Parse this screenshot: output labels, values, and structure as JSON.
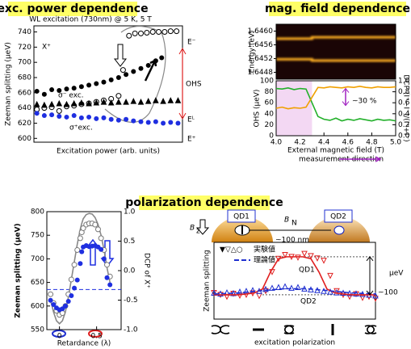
{
  "chart_data": [
    {
      "type": "scatter",
      "title": "exc. power dependence",
      "subtitle": "WL excitation (730nm) @ 5 K, 5 T",
      "y_label": "Zeeman splitting (μeV)",
      "x_label": "Excitation power (arb. units)",
      "xlim": [
        0,
        1
      ],
      "ylim": [
        595,
        748
      ],
      "yticks": [
        600,
        620,
        640,
        660,
        680,
        700,
        720,
        740
      ],
      "annotations": [
        "X⁺",
        "σ⁻ exc.",
        "σ⁺exc.",
        "E⁻",
        "OHS",
        "Eᴸ",
        "E⁺"
      ],
      "series": [
        {
          "marker": "open-circle",
          "color": "#000000",
          "x": [
            0.02,
            0.07,
            0.12,
            0.17,
            0.22,
            0.27,
            0.32,
            0.37,
            0.42,
            0.47,
            0.52,
            0.57,
            0.6,
            0.64,
            0.68,
            0.72,
            0.76,
            0.8,
            0.84,
            0.88,
            0.92,
            0.96
          ],
          "values": [
            638,
            640,
            641,
            636,
            642,
            643,
            645,
            646,
            648,
            650,
            652,
            656,
            690,
            735,
            738,
            738,
            739,
            740,
            740,
            740,
            741,
            741
          ]
        },
        {
          "marker": "circle",
          "color": "#000000",
          "x": [
            0.02,
            0.07,
            0.12,
            0.17,
            0.22,
            0.27,
            0.32,
            0.37,
            0.42,
            0.47,
            0.52,
            0.57,
            0.62,
            0.67,
            0.72,
            0.77,
            0.82,
            0.86
          ],
          "values": [
            662,
            658,
            664,
            663,
            665,
            666,
            668,
            670,
            672,
            674,
            677,
            680,
            684,
            688,
            692,
            696,
            702,
            706
          ]
        },
        {
          "marker": "circle",
          "color": "#1f2fe0",
          "x": [
            0.02,
            0.07,
            0.12,
            0.17,
            0.22,
            0.27,
            0.32,
            0.37,
            0.42,
            0.47,
            0.52,
            0.57,
            0.62,
            0.67,
            0.72,
            0.77,
            0.82,
            0.87,
            0.92,
            0.97
          ],
          "values": [
            633,
            630,
            631,
            629,
            628,
            630,
            627,
            628,
            626,
            627,
            625,
            624,
            625,
            623,
            622,
            621,
            622,
            620,
            621,
            620
          ]
        },
        {
          "marker": "triangle",
          "color": "#000000",
          "x": [
            0.02,
            0.07,
            0.12,
            0.17,
            0.22,
            0.27,
            0.32,
            0.37,
            0.42,
            0.47,
            0.52,
            0.57,
            0.62,
            0.67,
            0.72,
            0.77,
            0.82,
            0.87,
            0.92,
            0.97
          ],
          "values": [
            645,
            644,
            645,
            646,
            645,
            646,
            647,
            646,
            647,
            648,
            647,
            648,
            648,
            649,
            648,
            649,
            650,
            649,
            650,
            650
          ]
        }
      ]
    },
    {
      "type": "line",
      "title": "mag. field dependence",
      "image": {
        "y_label": "Energy (eV)",
        "ylim": [
          1.6446,
          1.6462
        ],
        "yticks": [
          1.6448,
          1.6452,
          1.6456,
          {
            "value": 1.646,
            "label": "1.6460"
          }
        ],
        "x": [
          4.0,
          4.3,
          4.3,
          5.0
        ],
        "color": "#ffb020",
        "lines": [
          {
            "values": [
              1.64578,
              1.64578,
              1.64582,
              1.64582
            ]
          },
          {
            "values": [
              1.64518,
              1.64518,
              1.64514,
              1.64514
            ]
          }
        ]
      },
      "x_label": "External magnetic field (T)",
      "xlim": [
        4.0,
        5.0
      ],
      "xticks": [
        {
          "value": 4.0,
          "label": "4.0"
        },
        4.2,
        4.4,
        4.6,
        4.8,
        {
          "value": 5.0,
          "label": "5.0"
        }
      ],
      "y_label": "OHS (μeV)",
      "ylim": [
        0,
        100
      ],
      "yticks": [
        0,
        20,
        40,
        60,
        80,
        100
      ],
      "y2_label": "DCP (I⁺−I⁻)/(I⁺+I⁻)",
      "y2lim": [
        0,
        1
      ],
      "y2ticks": [
        {
          "value": 0,
          "label": "0.0"
        },
        0.2,
        0.4,
        0.6,
        0.8,
        {
          "value": 1,
          "label": "1.0"
        }
      ],
      "annotations": [
        "~30 %",
        "measurement direction"
      ],
      "series": [
        {
          "marker": "line",
          "color": "#22b02a",
          "x": [
            4.0,
            4.05,
            4.1,
            4.15,
            4.2,
            4.25,
            4.3,
            4.35,
            4.4,
            4.45,
            4.5,
            4.55,
            4.6,
            4.65,
            4.7,
            4.75,
            4.8,
            4.85,
            4.9,
            4.95,
            5.0
          ],
          "values": [
            86,
            85,
            87,
            84,
            86,
            85,
            60,
            35,
            30,
            28,
            32,
            27,
            30,
            28,
            31,
            29,
            27,
            30,
            28,
            29,
            27
          ]
        },
        {
          "marker": "line",
          "color": "#f0a000",
          "axis": "y2",
          "x": [
            4.0,
            4.05,
            4.1,
            4.15,
            4.2,
            4.25,
            4.3,
            4.35,
            4.4,
            4.45,
            4.5,
            4.55,
            4.6,
            4.65,
            4.7,
            4.75,
            4.8,
            4.85,
            4.9,
            4.95,
            5.0
          ],
          "values": [
            0.5,
            0.52,
            0.49,
            0.51,
            0.5,
            0.52,
            0.7,
            0.88,
            0.87,
            0.89,
            0.88,
            0.87,
            0.89,
            0.88,
            0.9,
            0.88,
            0.87,
            0.89,
            0.88,
            0.88,
            0.89
          ]
        }
      ]
    },
    {
      "type": "scatter",
      "y_label": "Zeeman splitting (μeV)",
      "y2_label": "DCP of X⁺",
      "x_label": "Retardance (λ)",
      "xlim": [
        -0.17,
        0.83
      ],
      "xticks": [
        0,
        0.5
      ],
      "ylim": [
        550,
        800
      ],
      "yticks": [
        550,
        600,
        650,
        700,
        750,
        800
      ],
      "y2lim": [
        -1,
        1
      ],
      "y2ticks": [
        {
          "value": -1,
          "label": "-1.0"
        },
        -0.5,
        {
          "value": 0,
          "label": "0.0"
        },
        0.5,
        {
          "value": 1,
          "label": "1.0"
        }
      ],
      "hline": 635,
      "series": [
        {
          "marker": "line",
          "color": "#888888",
          "axis": "y2",
          "x": [
            -0.12,
            -0.08,
            -0.04,
            0,
            0.04,
            0.08,
            0.12,
            0.16,
            0.2,
            0.24,
            0.28,
            0.3,
            0.32,
            0.36,
            0.4,
            0.44,
            0.48,
            0.52,
            0.56,
            0.6,
            0.64,
            0.68
          ],
          "values": [
            -0.5,
            -0.7,
            -0.85,
            -0.9,
            -0.85,
            -0.7,
            -0.45,
            -0.15,
            0.15,
            0.45,
            0.7,
            0.8,
            0.88,
            0.95,
            0.97,
            0.96,
            0.9,
            0.78,
            0.6,
            0.35,
            0.05,
            -0.2
          ]
        },
        {
          "marker": "open-circle",
          "color": "#777777",
          "axis": "y2",
          "x": [
            -0.12,
            -0.08,
            -0.04,
            0,
            0.04,
            0.08,
            0.12,
            0.16,
            0.2,
            0.24,
            0.28,
            0.3,
            0.32,
            0.36,
            0.4,
            0.44,
            0.48,
            0.52,
            0.56,
            0.6,
            0.64,
            0.68
          ],
          "values": [
            -0.4,
            -0.55,
            -0.68,
            -0.75,
            -0.72,
            -0.6,
            -0.4,
            -0.15,
            0.1,
            0.35,
            0.55,
            0.65,
            0.72,
            0.78,
            0.8,
            0.8,
            0.78,
            0.7,
            0.55,
            0.35,
            0.1,
            -0.1
          ]
        },
        {
          "marker": "circle",
          "color": "#1f2fe0",
          "x": [
            -0.12,
            -0.08,
            -0.04,
            0,
            0.04,
            0.08,
            0.12,
            0.16,
            0.2,
            0.24,
            0.28,
            0.3,
            0.32,
            0.36,
            0.4,
            0.44,
            0.48,
            0.52,
            0.56,
            0.6,
            0.64,
            0.68
          ],
          "values": [
            612,
            603,
            596,
            592,
            594,
            600,
            610,
            622,
            638,
            655,
            690,
            715,
            725,
            728,
            726,
            727,
            728,
            725,
            720,
            700,
            660,
            645
          ]
        }
      ]
    },
    {
      "type": "scatter",
      "title": "polarization dependence",
      "y_label": "Zeeman splitting",
      "x_label": "excitation polarization",
      "xlim": [
        0,
        1
      ],
      "ylim": [
        -64,
        138
      ],
      "reference_lines": [
        0,
        100
      ],
      "diagram": {
        "qd1": "QD1",
        "qd2": "QD2",
        "bn": "B",
        "bn_sub": "N",
        "bz": "B",
        "bz_sub": "z",
        "size": "~100 nm"
      },
      "legend_markers": "▼▽△○",
      "labels": [
        "QD1",
        "QD2",
        "~100",
        "μeV"
      ],
      "series": [
        {
          "name": "実験値",
          "marker": "open-triangle-down",
          "color": "#e02020",
          "x": [
            0,
            0.04,
            0.08,
            0.12,
            0.16,
            0.2,
            0.24,
            0.28,
            0.32,
            0.36,
            0.4,
            0.44,
            0.48,
            0.52,
            0.56,
            0.6,
            0.64,
            0.68,
            0.72,
            0.76,
            0.8,
            0.84,
            0.88,
            0.92,
            0.96,
            1.0
          ],
          "values": [
            5,
            0,
            -5,
            3,
            -2,
            0,
            4,
            -3,
            10,
            60,
            95,
            105,
            100,
            98,
            108,
            102,
            96,
            90,
            50,
            10,
            0,
            -5,
            2,
            -8,
            -5,
            -10
          ]
        },
        {
          "marker": "open-triangle",
          "color": "#2030d0",
          "x": [
            0,
            0.04,
            0.08,
            0.12,
            0.16,
            0.2,
            0.24,
            0.28,
            0.32,
            0.36,
            0.4,
            0.44,
            0.48,
            0.52,
            0.56,
            0.6,
            0.64,
            0.68,
            0.72,
            0.76,
            0.8,
            0.84,
            0.88,
            0.92,
            0.96,
            1.0
          ],
          "values": [
            5,
            3,
            6,
            4,
            8,
            10,
            12,
            10,
            15,
            18,
            20,
            22,
            18,
            20,
            16,
            14,
            12,
            10,
            8,
            6,
            5,
            4,
            3,
            2,
            0,
            -2
          ]
        },
        {
          "marker": "line",
          "color": "#e02020",
          "x": [
            0,
            0.05,
            0.1,
            0.15,
            0.2,
            0.25,
            0.3,
            0.35,
            0.4,
            0.45,
            0.5,
            0.55,
            0.6,
            0.65,
            0.7,
            0.75,
            0.8,
            0.85,
            0.9,
            0.95,
            1.0
          ],
          "values": [
            0,
            0,
            0,
            0,
            2,
            5,
            15,
            60,
            95,
            100,
            100,
            100,
            95,
            60,
            15,
            5,
            2,
            0,
            0,
            0,
            0
          ]
        },
        {
          "name": "理論値",
          "marker": "dashed-line",
          "color": "#2030d0",
          "x": [
            0,
            0.05,
            0.1,
            0.15,
            0.2,
            0.25,
            0.3,
            0.35,
            0.4,
            0.45,
            0.5,
            0.55,
            0.6,
            0.65,
            0.7,
            0.75,
            0.8,
            0.85,
            0.9,
            0.95,
            1.0
          ],
          "values": [
            2,
            3,
            4,
            5,
            7,
            9,
            11,
            13,
            15,
            16,
            16,
            16,
            15,
            13,
            11,
            9,
            7,
            5,
            4,
            3,
            2
          ]
        }
      ]
    }
  ]
}
